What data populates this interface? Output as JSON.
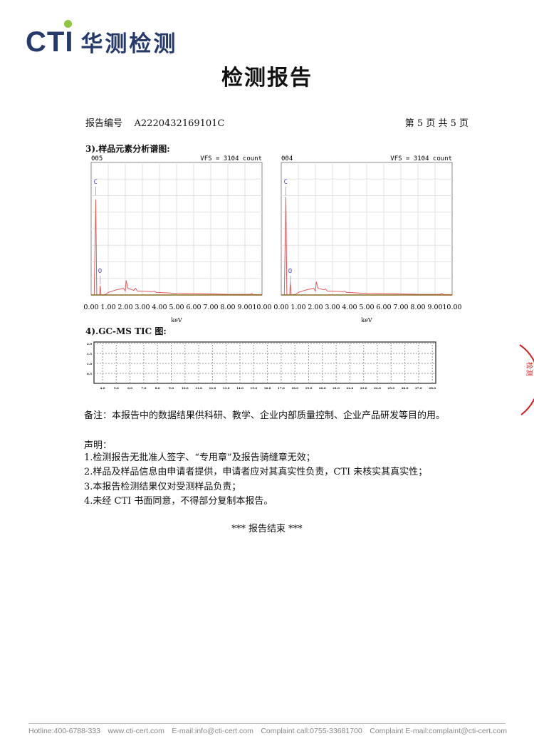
{
  "logo": {
    "text": "CTI",
    "cn": "华测检测",
    "dot_color": "#8dc63f",
    "brand_color": "#253a6b"
  },
  "title": "检测报告",
  "report": {
    "no_label": "报告编号",
    "no_value": "A2220432169101C",
    "page": "第 5 页  共 5 页"
  },
  "section3": {
    "heading": "3).样品元素分析谱图:"
  },
  "section4": {
    "heading": "4).GC-MS TIC 图:"
  },
  "chart_data": [
    {
      "type": "line",
      "id": "005",
      "annotation": "VFS = 3104 count",
      "xlabel": "keV",
      "xlim": [
        0,
        10
      ],
      "x_ticks": [
        "0.00",
        "1.00",
        "2.00",
        "3.00",
        "4.00",
        "5.00",
        "6.00",
        "7.00",
        "8.00",
        "9.00",
        "10.00"
      ],
      "peaks": [
        {
          "label": "C",
          "kev": 0.27
        },
        {
          "label": "O",
          "kev": 0.53
        }
      ],
      "series": [
        {
          "x": [
            0,
            0.18,
            0.27,
            0.33,
            0.5,
            0.53,
            0.58,
            0.85,
            1.0,
            1.5,
            1.9,
            2.0,
            2.05,
            2.15,
            2.5,
            2.6,
            2.7,
            3.6,
            3.7,
            3.8,
            5,
            6.5,
            8,
            9.3,
            9.4,
            9.5,
            10
          ],
          "y_fraction_of_vfs": [
            0,
            0,
            0.72,
            0,
            0,
            0.07,
            0,
            0.005,
            0.02,
            0.04,
            0.05,
            0.03,
            0.11,
            0.05,
            0.035,
            0.05,
            0.03,
            0.025,
            0.03,
            0.02,
            0.012,
            0.01,
            0.005,
            0.005,
            0.01,
            0.003,
            0.003
          ]
        }
      ]
    },
    {
      "type": "line",
      "id": "004",
      "annotation": "VFS = 3104 count",
      "xlabel": "keV",
      "xlim": [
        0,
        10
      ],
      "x_ticks": [
        "0.00",
        "1.00",
        "2.00",
        "3.00",
        "4.00",
        "5.00",
        "6.00",
        "7.00",
        "8.00",
        "9.00",
        "10.00"
      ],
      "peaks": [
        {
          "label": "C",
          "kev": 0.27
        },
        {
          "label": "O",
          "kev": 0.53
        }
      ],
      "series": [
        {
          "x": [
            0,
            0.18,
            0.27,
            0.33,
            0.5,
            0.53,
            0.58,
            0.85,
            1.0,
            1.5,
            1.9,
            2.0,
            2.05,
            2.15,
            2.5,
            2.6,
            2.7,
            3.6,
            3.7,
            3.8,
            5,
            6.5,
            8,
            9.3,
            9.4,
            9.5,
            10
          ],
          "y_fraction_of_vfs": [
            0,
            0,
            0.74,
            0,
            0,
            0.1,
            0,
            0.005,
            0.02,
            0.04,
            0.05,
            0.03,
            0.1,
            0.05,
            0.04,
            0.045,
            0.03,
            0.025,
            0.03,
            0.02,
            0.012,
            0.01,
            0.005,
            0.005,
            0.012,
            0.003,
            0.003
          ]
        }
      ]
    },
    {
      "type": "line",
      "title": "GC-MS TIC",
      "y_ticks": [
        "2.0",
        "1.5",
        "1.0",
        "0.5"
      ],
      "x_ticks": [
        "4.0",
        "5.0",
        "6.0",
        "7.0",
        "8.0",
        "9.0",
        "10.0",
        "11.0",
        "12.0",
        "13.0",
        "14.0",
        "15.0",
        "16.0",
        "17.0",
        "18.0",
        "19.0",
        "20.0",
        "21.0",
        "22.0",
        "23.0",
        "24.0",
        "25.0",
        "26.0",
        "27.0",
        "28.0"
      ],
      "grid": true,
      "series": []
    }
  ],
  "note": "备注：本报告中的数据结果供科研、教学、企业内部质量控制、企业产品研发等目的用。",
  "statement": {
    "heading": "声明：",
    "items": [
      "1.检测报告无批准人签字、“专用章”及报告骑缝章无效；",
      "2.样品及样品信息由申请者提供，申请者应对其真实性负责，CTI 未核实其真实性；",
      "3.本报告检测结果仅对受测样品负责；",
      "4.未经 CTI 书面同意，不得部分复制本报告。"
    ]
  },
  "end": "***  报告结束  ***",
  "seal_color": "#d42020",
  "footer": [
    "Hotline:400-6788-333",
    "www.cti-cert.com",
    "E-mail:info@cti-cert.com",
    "Complaint call:0755-33681700",
    "Complaint E-mail:complaint@cti-cert.com"
  ]
}
